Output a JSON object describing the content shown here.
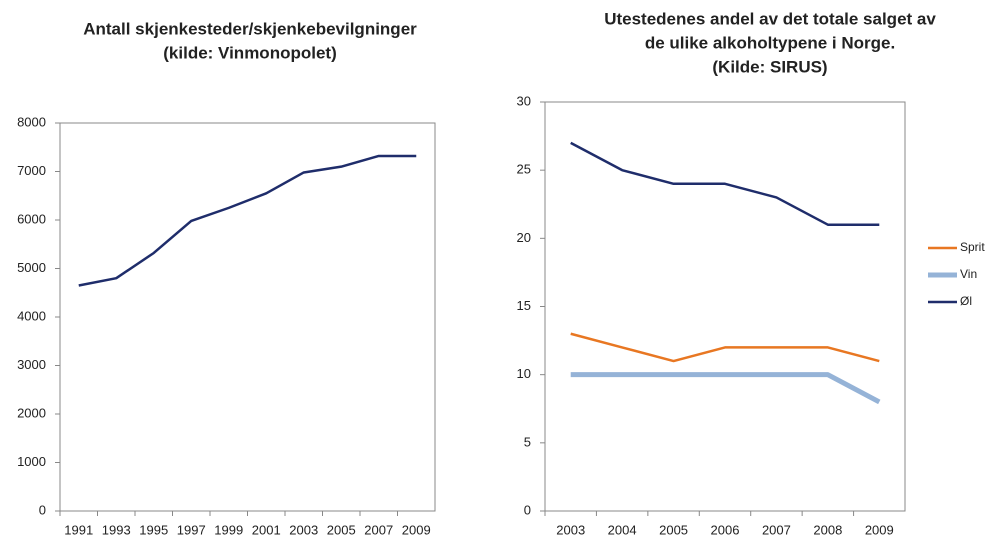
{
  "chart_data": [
    {
      "type": "line",
      "title": [
        "Antall skjenkesteder/skjenkebevilgninger",
        "(kilde: Vinmonopolet)"
      ],
      "categories": [
        "1991",
        "1993",
        "1995",
        "1997",
        "1999",
        "2001",
        "2003",
        "2005",
        "2007",
        "2009"
      ],
      "series": [
        {
          "name": null,
          "color": "#1f2d6b",
          "values": [
            4650,
            4800,
            5320,
            5980,
            6250,
            6550,
            6980,
            7100,
            7320,
            7320
          ]
        }
      ],
      "ylim": [
        0,
        8000
      ],
      "yticks": [
        0,
        1000,
        2000,
        3000,
        4000,
        5000,
        6000,
        7000,
        8000
      ],
      "grid": false,
      "legend": null
    },
    {
      "type": "line",
      "title": [
        "Utestedenes andel av det totale salget av",
        "de ulike alkoholtypene i Norge.",
        "(Kilde: SIRUS)"
      ],
      "categories": [
        "2003",
        "2004",
        "2005",
        "2006",
        "2007",
        "2008",
        "2009"
      ],
      "series": [
        {
          "name": "Sprit",
          "color": "#e87722",
          "values": [
            13,
            12,
            11,
            12,
            12,
            12,
            11
          ]
        },
        {
          "name": "Vin",
          "color": "#95b3d7",
          "values": [
            10,
            10,
            10,
            10,
            10,
            10,
            8
          ]
        },
        {
          "name": "Øl",
          "color": "#1f2d6b",
          "values": [
            27,
            25,
            24,
            24,
            23,
            21,
            21
          ]
        }
      ],
      "ylim": [
        0,
        30
      ],
      "yticks": [
        0,
        5,
        10,
        15,
        20,
        25,
        30
      ],
      "grid": false,
      "legend": "right"
    }
  ]
}
